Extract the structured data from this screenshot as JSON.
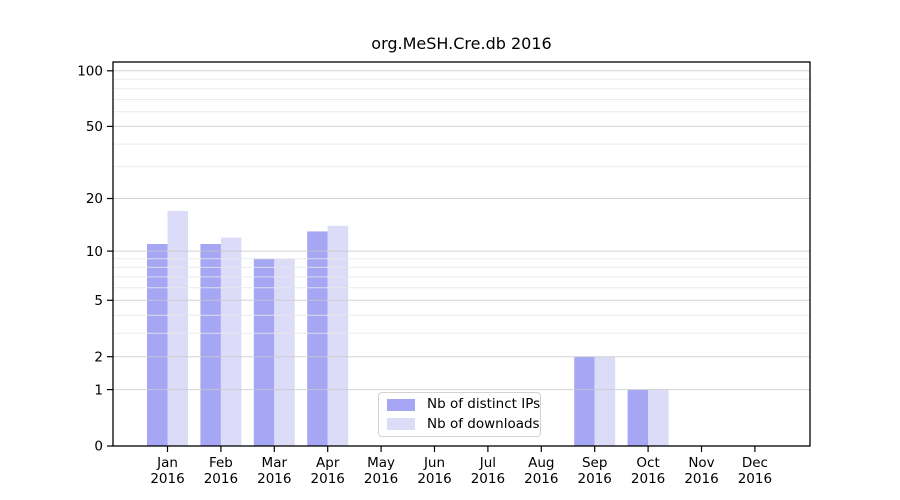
{
  "chart_data": {
    "type": "bar",
    "title": "org.MeSH.Cre.db 2016",
    "categories": [
      "Jan 2016",
      "Feb 2016",
      "Mar 2016",
      "Apr 2016",
      "May 2016",
      "Jun 2016",
      "Jul 2016",
      "Aug 2016",
      "Sep 2016",
      "Oct 2016",
      "Nov 2016",
      "Dec 2016"
    ],
    "series": [
      {
        "name": "Nb of distinct IPs",
        "color": "#a5a6f4",
        "values": [
          11,
          11,
          9,
          13,
          0,
          0,
          0,
          0,
          2,
          1,
          0,
          0
        ]
      },
      {
        "name": "Nb of downloads",
        "color": "#dcdcf9",
        "values": [
          17,
          12,
          9,
          14,
          0,
          0,
          0,
          0,
          2,
          1,
          0,
          0
        ]
      }
    ],
    "yscale": "log1p",
    "yticks": [
      0,
      1,
      2,
      5,
      10,
      20,
      50,
      100
    ],
    "yticks_minor": [
      3,
      4,
      6,
      7,
      8,
      9,
      30,
      40,
      60,
      70,
      80,
      90
    ],
    "ylim": [
      0,
      112
    ],
    "xlabel": "",
    "ylabel": "",
    "grid": "horizontal, drawn over bars",
    "legend_position": "lower center"
  },
  "colors": {
    "background": "#ffffff",
    "axis": "#000000",
    "tick_label": "#000000",
    "major_grid": "#c9c9c9",
    "minor_grid": "#e7e7e7",
    "legend_border": "#d2d2d2"
  }
}
